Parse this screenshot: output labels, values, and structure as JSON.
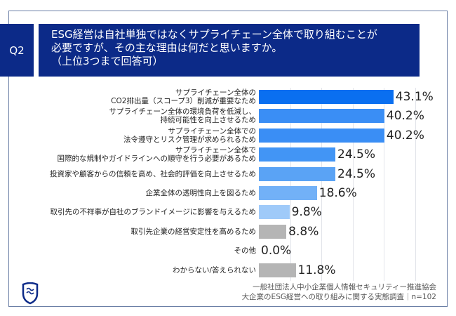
{
  "header": {
    "q_label": "Q2",
    "title": "ESG経営は自社単独ではなくサプライチェーン全体で取り組むことが\n必要ですが、その主な理由は何だと思いますか。\n（上位3つまで回答可）"
  },
  "chart_data": {
    "type": "bar",
    "orientation": "horizontal",
    "categories": [
      "サプライチェーン全体の\nCO2排出量（スコープ3）削減が重要なため",
      "サプライチェーン全体の環境負荷を低減し、\n持続可能性を向上させるため",
      "サプライチェーン全体での\n法令遵守とリスク管理が求められるため",
      "サプライチェーン全体で\n国際的な規制やガイドラインへの順守を行う必要があるため",
      "投資家や顧客からの信頼を高め、社会的評価を向上させるため",
      "企業全体の透明性向上を図るため",
      "取引先の不祥事が自社のブランドイメージに影響を与えるため",
      "取引先企業の経営安定性を高めるため",
      "その他",
      "わからない/答えられない"
    ],
    "values": [
      43.1,
      40.2,
      40.2,
      24.5,
      24.5,
      18.6,
      9.8,
      8.8,
      0.0,
      11.8
    ],
    "value_labels": [
      "43.1%",
      "40.2%",
      "40.2%",
      "24.5%",
      "24.5%",
      "18.6%",
      "9.8%",
      "8.8%",
      "0.0%",
      "11.8%"
    ],
    "colors": [
      "#0a6ff0",
      "#3a8ef5",
      "#3a8ef5",
      "#4295f5",
      "#5aa3f5",
      "#72b1f7",
      "#9fcaf9",
      "#b5b5b5",
      "#b5b5b5",
      "#b5b5b5"
    ],
    "xlim": [
      0,
      50
    ],
    "grid": true,
    "grid_step": 10
  },
  "footer": {
    "source_line1": "一般社団法人中小企業個人情報セキュリティー推進協会",
    "source_line2": "大企業のESG経営への取り組みに関する実態調査｜n=102"
  }
}
